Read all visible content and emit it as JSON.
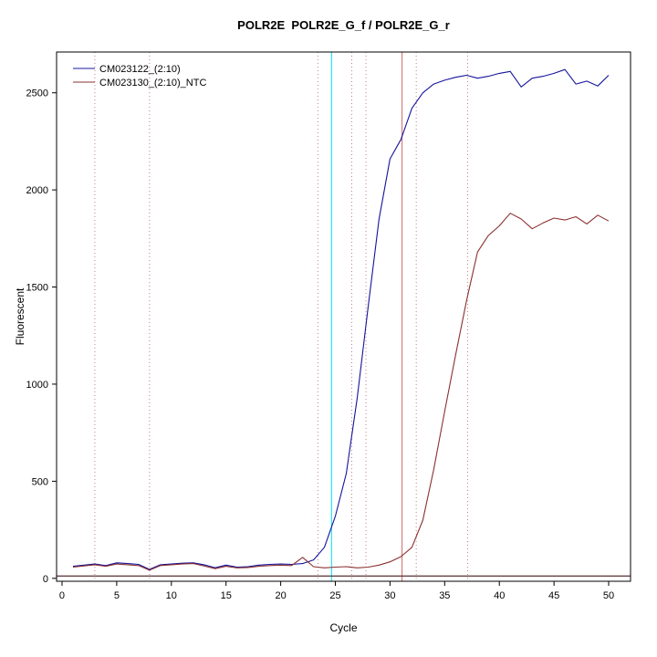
{
  "chart_data": {
    "type": "line",
    "title": "POLR2E  POLR2E_G_f / POLR2E_G_r",
    "xlabel": "Cycle",
    "ylabel": "Fluorescent",
    "xlim": [
      -0.5,
      52
    ],
    "ylim": [
      -15,
      2710
    ],
    "x_ticks": [
      0,
      5,
      10,
      15,
      20,
      25,
      30,
      35,
      40,
      45,
      50
    ],
    "y_ticks": [
      0,
      500,
      1000,
      1500,
      2000,
      2500
    ],
    "grid": false,
    "legend_position": "top-left",
    "x": [
      1,
      2,
      3,
      4,
      5,
      6,
      7,
      8,
      9,
      10,
      11,
      12,
      13,
      14,
      15,
      16,
      17,
      18,
      19,
      20,
      21,
      22,
      23,
      24,
      25,
      26,
      27,
      28,
      29,
      30,
      31,
      32,
      33,
      34,
      35,
      36,
      37,
      38,
      39,
      40,
      41,
      42,
      43,
      44,
      45,
      46,
      47,
      48,
      49,
      50
    ],
    "series": [
      {
        "name": "CM023122_(2:10)",
        "color": "#14149b",
        "values": [
          62,
          68,
          74,
          66,
          80,
          76,
          72,
          46,
          70,
          74,
          78,
          80,
          70,
          55,
          68,
          58,
          60,
          68,
          72,
          74,
          72,
          76,
          95,
          160,
          320,
          540,
          930,
          1400,
          1850,
          2160,
          2260,
          2420,
          2500,
          2545,
          2565,
          2580,
          2590,
          2575,
          2585,
          2600,
          2610,
          2530,
          2575,
          2585,
          2600,
          2620,
          2545,
          2560,
          2535,
          2590
        ]
      },
      {
        "name": "CM023130_(2:10)_NTC",
        "color": "#8b3030",
        "values": [
          58,
          64,
          70,
          62,
          74,
          70,
          66,
          42,
          66,
          70,
          74,
          76,
          64,
          50,
          62,
          54,
          56,
          62,
          66,
          68,
          66,
          108,
          60,
          54,
          58,
          60,
          54,
          58,
          68,
          85,
          112,
          160,
          300,
          560,
          860,
          1150,
          1430,
          1680,
          1765,
          1815,
          1880,
          1850,
          1800,
          1830,
          1855,
          1845,
          1862,
          1825,
          1870,
          1840
        ]
      }
    ],
    "vlines": [
      {
        "x": 24.65,
        "color": "#00e0ee",
        "style": "solid",
        "name": "ct-line-sample"
      },
      {
        "x": 31.1,
        "color": "#cd6666",
        "style": "solid",
        "name": "ct-line-ntc"
      },
      {
        "x": 3,
        "color": "#c08080",
        "style": "dotted",
        "name": "marker-line"
      },
      {
        "x": 8,
        "color": "#c08080",
        "style": "dotted",
        "name": "marker-line"
      },
      {
        "x": 23.4,
        "color": "#c08080",
        "style": "dotted",
        "name": "marker-line"
      },
      {
        "x": 26.5,
        "color": "#c08080",
        "style": "dotted",
        "name": "marker-line"
      },
      {
        "x": 27.8,
        "color": "#c08080",
        "style": "dotted",
        "name": "marker-line"
      },
      {
        "x": 32.4,
        "color": "#c08080",
        "style": "dotted",
        "name": "marker-line"
      },
      {
        "x": 37.1,
        "color": "#c08080",
        "style": "dotted",
        "name": "marker-line"
      }
    ],
    "hlines": [
      {
        "y": 12,
        "color": "#553030",
        "style": "solid",
        "name": "threshold-line"
      }
    ],
    "axis_color": "#000000",
    "tick_font_size": 11,
    "legend_font_size": 11
  }
}
